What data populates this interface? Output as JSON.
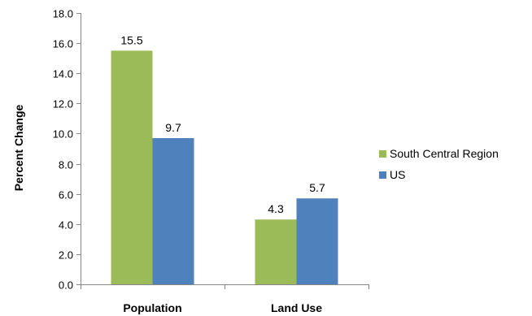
{
  "chart_data": {
    "type": "bar",
    "categories": [
      "Population",
      "Land Use"
    ],
    "series": [
      {
        "name": "South Central Region",
        "values": [
          15.5,
          4.3
        ],
        "color": "#9BBB59"
      },
      {
        "name": "US",
        "values": [
          9.7,
          5.7
        ],
        "color": "#4F81BD"
      }
    ],
    "title": "",
    "xlabel": "",
    "ylabel": "Percent Change",
    "ylim": [
      0,
      18
    ],
    "ytick_step": 2,
    "ytick_labels": [
      "0.0",
      "2.0",
      "4.0",
      "6.0",
      "8.0",
      "10.0",
      "12.0",
      "14.0",
      "16.0",
      "18.0"
    ],
    "data_labels": [
      [
        "15.5",
        "4.3"
      ],
      [
        "9.7",
        "5.7"
      ]
    ],
    "grid": false,
    "legend_position": "right"
  }
}
